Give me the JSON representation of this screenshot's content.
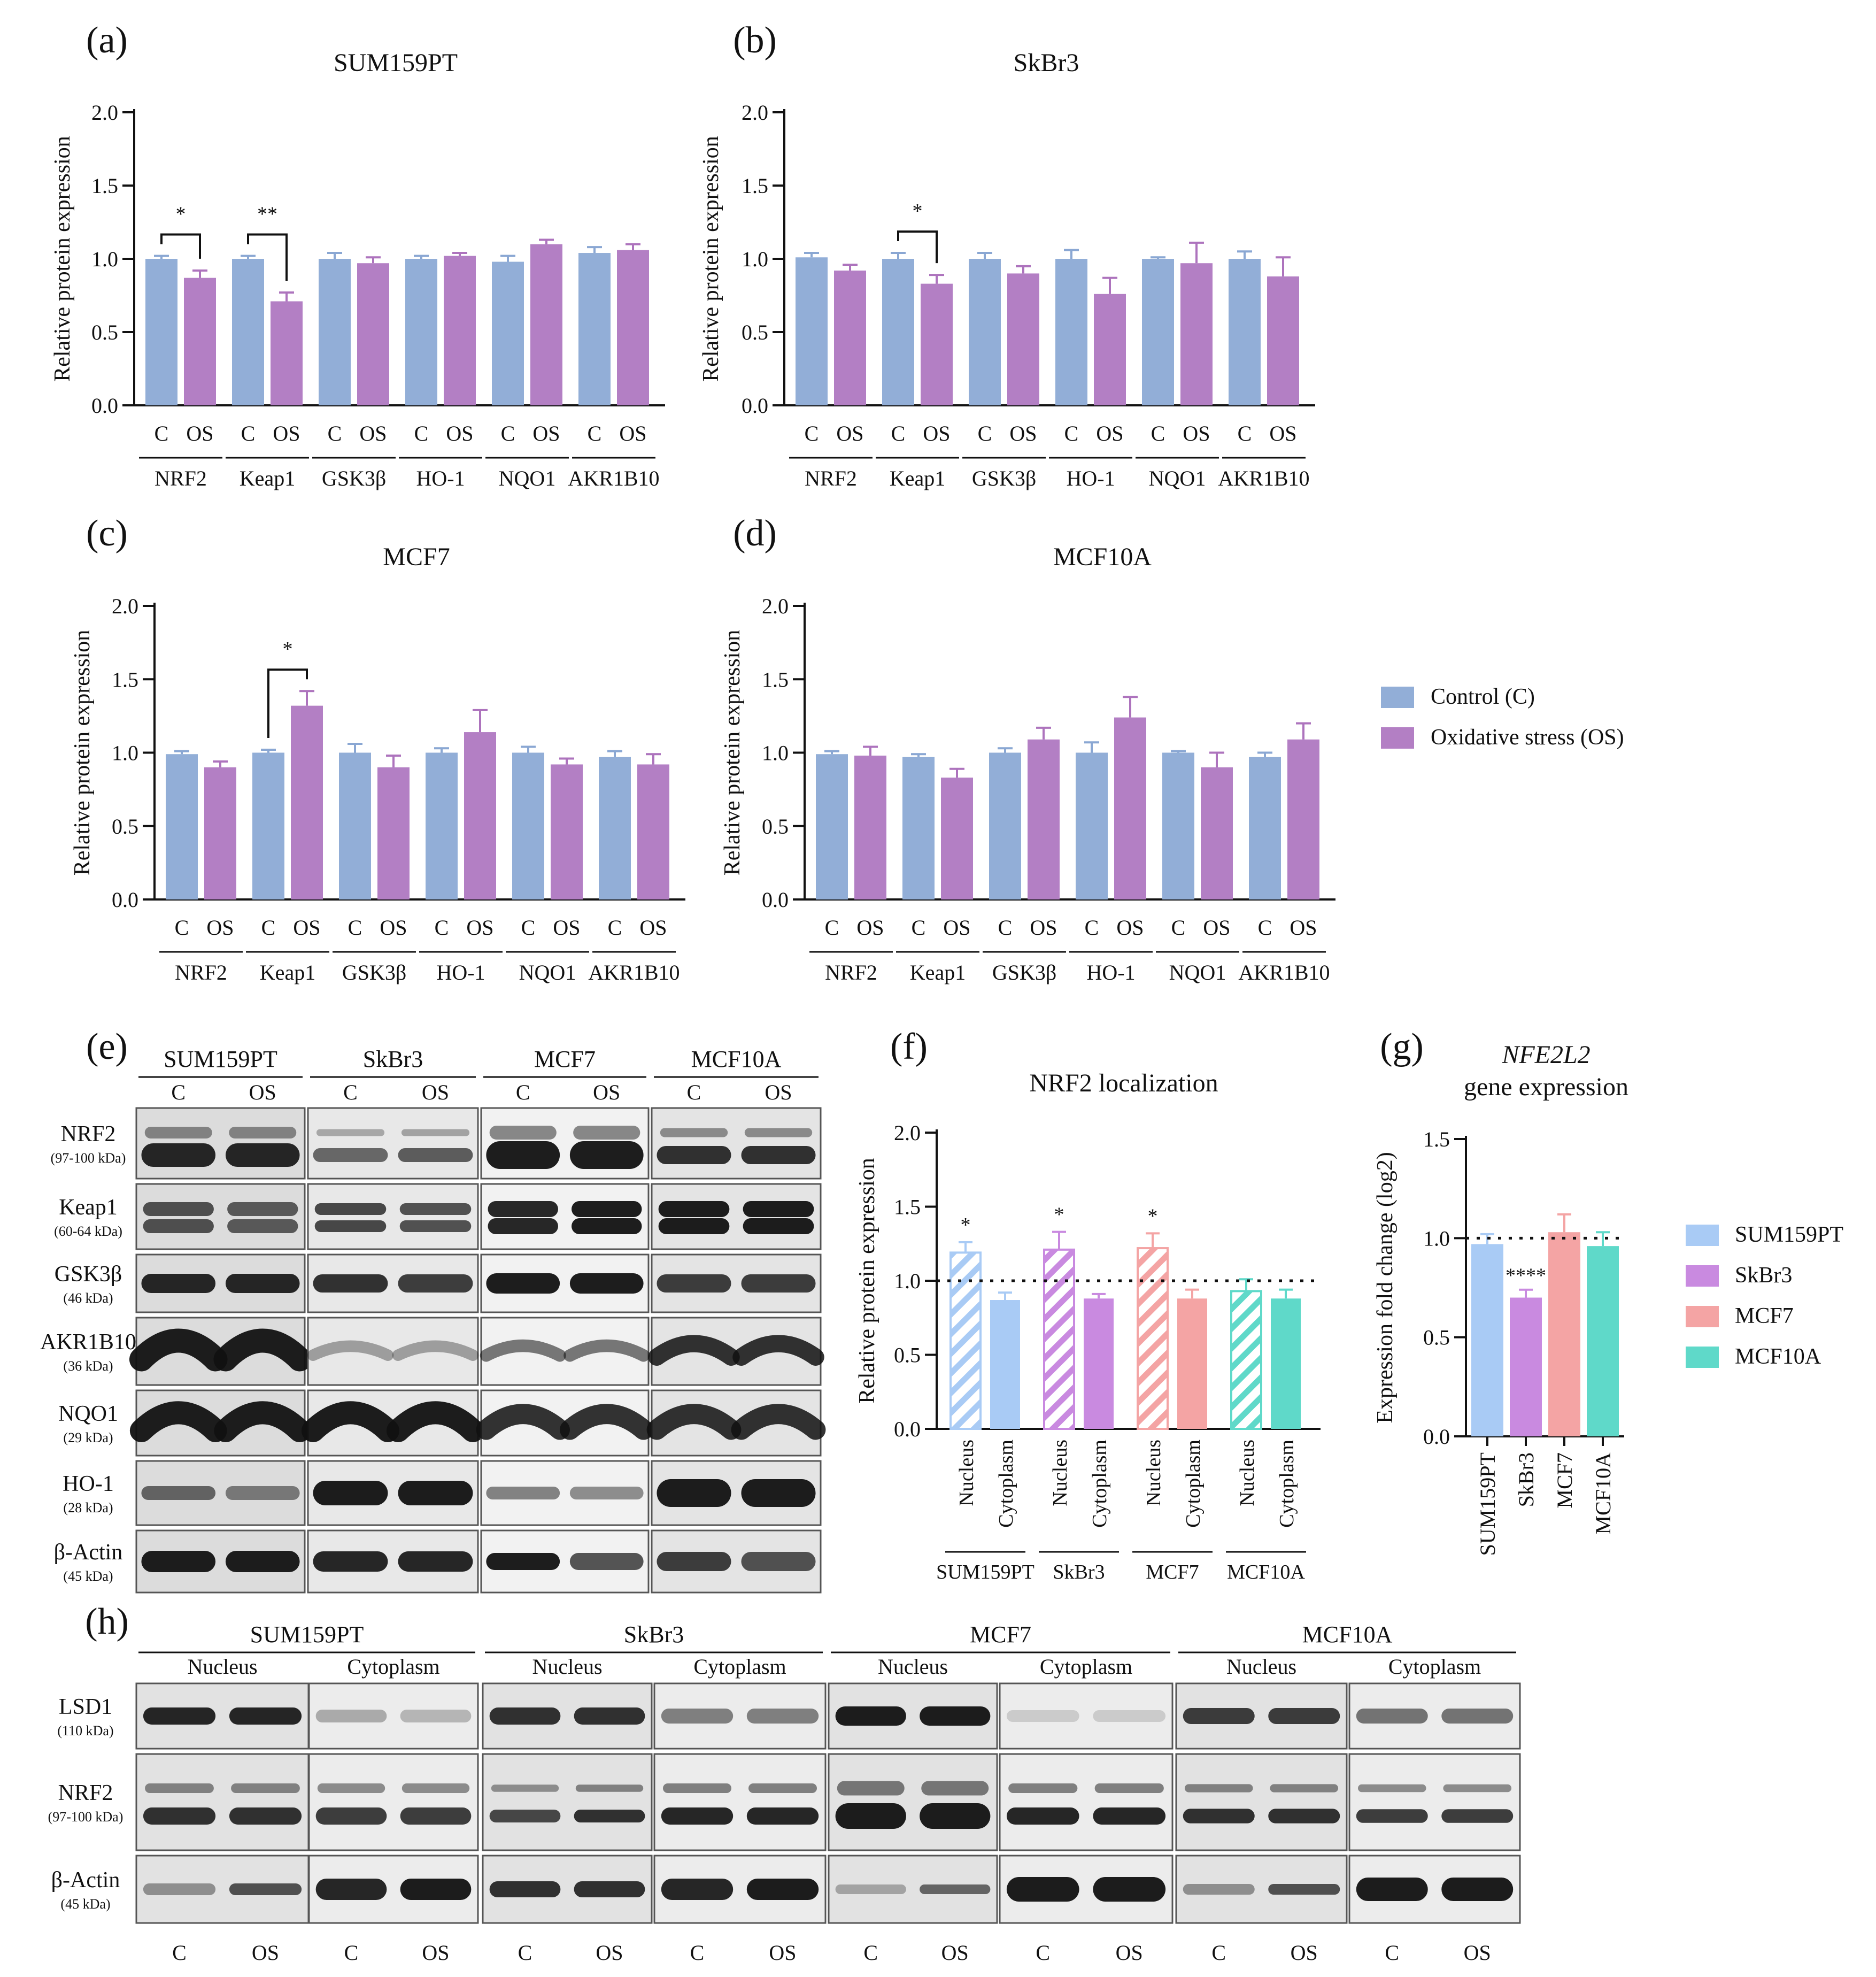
{
  "colors": {
    "control": "#92aed7",
    "os": "#b37fc4",
    "err_control": "#8aa7d3",
    "err_os": "#ad73bd",
    "sum159pt": "#a9cbf5",
    "skbr3": "#c98ae0",
    "mcf7": "#f4a4a4",
    "mcf10a": "#5fd9c9"
  },
  "legend_main": [
    {
      "label": "Control (C)",
      "color": "#92aed7"
    },
    {
      "label": "Oxidative stress (OS)",
      "color": "#b37fc4"
    }
  ],
  "legend_lines": [
    {
      "label": "SUM159PT",
      "color": "#a9cbf5"
    },
    {
      "label": "SkBr3",
      "color": "#c98ae0"
    },
    {
      "label": "MCF7",
      "color": "#f4a4a4"
    },
    {
      "label": "MCF10A",
      "color": "#5fd9c9"
    }
  ],
  "chart_data": [
    {
      "panel": "(a)",
      "type": "bar",
      "title": "SUM159PT",
      "ylabel": "Relative protein expression",
      "ylim": [
        0,
        2
      ],
      "yticks": [
        "0.0",
        "0.5",
        "1.0",
        "1.5",
        "2.0"
      ],
      "categories": [
        "NRF2",
        "Keap1",
        "GSK3β",
        "HO-1",
        "NQO1",
        "AKR1B10"
      ],
      "bar_labels": [
        "C",
        "OS"
      ],
      "series": [
        {
          "name": "Control (C)",
          "values": [
            1.0,
            1.0,
            1.0,
            1.0,
            0.98,
            1.04
          ],
          "errors": [
            0.02,
            0.02,
            0.04,
            0.02,
            0.04,
            0.04
          ]
        },
        {
          "name": "Oxidative stress (OS)",
          "values": [
            0.87,
            0.71,
            0.97,
            1.02,
            1.1,
            1.06
          ],
          "errors": [
            0.05,
            0.06,
            0.04,
            0.02,
            0.03,
            0.04
          ]
        }
      ],
      "significance": [
        {
          "category": "NRF2",
          "label": "*"
        },
        {
          "category": "Keap1",
          "label": "**"
        }
      ]
    },
    {
      "panel": "(b)",
      "type": "bar",
      "title": "SkBr3",
      "ylabel": "Relative protein expression",
      "ylim": [
        0,
        2
      ],
      "yticks": [
        "0.0",
        "0.5",
        "1.0",
        "1.5",
        "2.0"
      ],
      "categories": [
        "NRF2",
        "Keap1",
        "GSK3β",
        "HO-1",
        "NQO1",
        "AKR1B10"
      ],
      "bar_labels": [
        "C",
        "OS"
      ],
      "series": [
        {
          "name": "Control (C)",
          "values": [
            1.01,
            1.0,
            1.0,
            1.0,
            1.0,
            1.0
          ],
          "errors": [
            0.03,
            0.04,
            0.04,
            0.06,
            0.01,
            0.05
          ]
        },
        {
          "name": "Oxidative stress (OS)",
          "values": [
            0.92,
            0.83,
            0.9,
            0.76,
            0.97,
            0.88
          ],
          "errors": [
            0.04,
            0.06,
            0.05,
            0.11,
            0.14,
            0.13
          ]
        }
      ],
      "significance": [
        {
          "category": "Keap1",
          "label": "*"
        }
      ]
    },
    {
      "panel": "(c)",
      "type": "bar",
      "title": "MCF7",
      "ylabel": "Relative protein expression",
      "ylim": [
        0,
        2
      ],
      "yticks": [
        "0.0",
        "0.5",
        "1.0",
        "1.5",
        "2.0"
      ],
      "categories": [
        "NRF2",
        "Keap1",
        "GSK3β",
        "HO-1",
        "NQO1",
        "AKR1B10"
      ],
      "bar_labels": [
        "C",
        "OS"
      ],
      "series": [
        {
          "name": "Control (C)",
          "values": [
            0.99,
            1.0,
            1.0,
            1.0,
            1.0,
            0.97
          ],
          "errors": [
            0.02,
            0.02,
            0.06,
            0.03,
            0.04,
            0.04
          ]
        },
        {
          "name": "Oxidative stress (OS)",
          "values": [
            0.9,
            1.32,
            0.9,
            1.14,
            0.92,
            0.92
          ],
          "errors": [
            0.04,
            0.1,
            0.08,
            0.15,
            0.04,
            0.07
          ]
        }
      ],
      "significance": [
        {
          "category": "Keap1",
          "label": "*"
        }
      ]
    },
    {
      "panel": "(d)",
      "type": "bar",
      "title": "MCF10A",
      "ylabel": "Relative protein expression",
      "ylim": [
        0,
        2
      ],
      "yticks": [
        "0.0",
        "0.5",
        "1.0",
        "1.5",
        "2.0"
      ],
      "categories": [
        "NRF2",
        "Keap1",
        "GSK3β",
        "HO-1",
        "NQO1",
        "AKR1B10"
      ],
      "bar_labels": [
        "C",
        "OS"
      ],
      "series": [
        {
          "name": "Control (C)",
          "values": [
            0.99,
            0.97,
            1.0,
            1.0,
            1.0,
            0.97
          ],
          "errors": [
            0.02,
            0.02,
            0.03,
            0.07,
            0.01,
            0.03
          ]
        },
        {
          "name": "Oxidative stress (OS)",
          "values": [
            0.98,
            0.83,
            1.09,
            1.24,
            0.9,
            1.09
          ],
          "errors": [
            0.06,
            0.06,
            0.08,
            0.14,
            0.1,
            0.11
          ]
        }
      ],
      "significance": []
    },
    {
      "panel": "(f)",
      "type": "bar",
      "title": "NRF2 localization",
      "ylabel": "Relative protein expression",
      "ylim": [
        0,
        2
      ],
      "yticks": [
        "0.0",
        "0.5",
        "1.0",
        "1.5",
        "2.0"
      ],
      "categories": [
        "SUM159PT",
        "SkBr3",
        "MCF7",
        "MCF10A"
      ],
      "bar_labels": [
        "Nucleus",
        "Cytoplasm"
      ],
      "reference_line": 1.0,
      "series": [
        {
          "name": "Nucleus",
          "values": [
            1.19,
            1.21,
            1.22,
            0.93
          ],
          "errors": [
            0.07,
            0.12,
            0.1,
            0.08
          ]
        },
        {
          "name": "Cytoplasm",
          "values": [
            0.87,
            0.88,
            0.88,
            0.88
          ],
          "errors": [
            0.05,
            0.03,
            0.06,
            0.06
          ]
        }
      ],
      "significance": [
        {
          "category": "SUM159PT",
          "label": "*"
        },
        {
          "category": "SkBr3",
          "label": "*"
        },
        {
          "category": "MCF7",
          "label": "*"
        }
      ]
    },
    {
      "panel": "(g)",
      "type": "bar",
      "title_italic": "NFE2L2",
      "title": "gene expression",
      "ylabel": "Expression fold change (log2)",
      "ylim": [
        0,
        1.5
      ],
      "yticks": [
        "0.0",
        "0.5",
        "1.0",
        "1.5"
      ],
      "categories": [
        "SUM159PT",
        "SkBr3",
        "MCF7",
        "MCF10A"
      ],
      "reference_line": 1.0,
      "values": [
        0.97,
        0.7,
        1.03,
        0.96
      ],
      "errors": [
        0.05,
        0.04,
        0.09,
        0.07
      ],
      "significance": [
        {
          "category": "SkBr3",
          "label": "****"
        }
      ]
    }
  ],
  "panel_e": {
    "label": "(e)",
    "groups": [
      "SUM159PT",
      "SkBr3",
      "MCF7",
      "MCF10A"
    ],
    "lanes": [
      "C",
      "OS"
    ],
    "rows": [
      {
        "name": "NRF2",
        "kda": "(97-100 kDa)"
      },
      {
        "name": "Keap1",
        "kda": "(60-64 kDa)"
      },
      {
        "name": "GSK3β",
        "kda": "(46 kDa)"
      },
      {
        "name": "AKR1B10",
        "kda": "(36 kDa)"
      },
      {
        "name": "NQO1",
        "kda": "(29 kDa)"
      },
      {
        "name": "HO-1",
        "kda": "(28 kDa)"
      },
      {
        "name": "β-Actin",
        "kda": "(45 kDa)"
      }
    ]
  },
  "panel_h": {
    "label": "(h)",
    "groups": [
      "SUM159PT",
      "SkBr3",
      "MCF7",
      "MCF10A"
    ],
    "fractions": [
      "Nucleus",
      "Cytoplasm"
    ],
    "lanes": [
      "C",
      "OS"
    ],
    "rows": [
      {
        "name": "LSD1",
        "kda": "(110 kDa)"
      },
      {
        "name": "NRF2",
        "kda": "(97-100 kDa)"
      },
      {
        "name": "β-Actin",
        "kda": "(45 kDa)"
      }
    ]
  }
}
